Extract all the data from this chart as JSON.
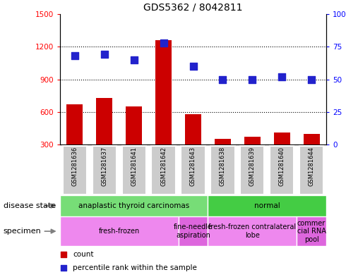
{
  "title": "GDS5362 / 8042811",
  "samples": [
    "GSM1281636",
    "GSM1281637",
    "GSM1281641",
    "GSM1281642",
    "GSM1281643",
    "GSM1281638",
    "GSM1281639",
    "GSM1281640",
    "GSM1281644"
  ],
  "counts": [
    670,
    730,
    650,
    1260,
    580,
    350,
    370,
    410,
    400
  ],
  "percentile_ranks": [
    68,
    69,
    65,
    78,
    60,
    50,
    50,
    52,
    50
  ],
  "ylim_left": [
    300,
    1500
  ],
  "ylim_right": [
    0,
    100
  ],
  "yticks_left": [
    300,
    600,
    900,
    1200,
    1500
  ],
  "yticks_right": [
    0,
    25,
    50,
    75,
    100
  ],
  "ytick_right_labels": [
    "0",
    "25",
    "50",
    "75",
    "100%"
  ],
  "bar_color": "#cc0000",
  "dot_color": "#2222cc",
  "dot_size": 55,
  "bar_width": 0.55,
  "disease_state_groups": [
    {
      "label": "anaplastic thyroid carcinomas",
      "start": 0,
      "end": 5,
      "color": "#77dd77"
    },
    {
      "label": "normal",
      "start": 5,
      "end": 9,
      "color": "#44cc44"
    }
  ],
  "specimen_groups": [
    {
      "label": "fresh-frozen",
      "start": 0,
      "end": 4,
      "color": "#ee88ee"
    },
    {
      "label": "fine-needle\naspiration",
      "start": 4,
      "end": 5,
      "color": "#dd66dd"
    },
    {
      "label": "fresh-frozen contralateral\nlobe",
      "start": 5,
      "end": 8,
      "color": "#ee88ee"
    },
    {
      "label": "commer\ncial RNA\npool",
      "start": 8,
      "end": 9,
      "color": "#dd66dd"
    }
  ],
  "legend_count_label": "count",
  "legend_percentile_label": "percentile rank within the sample",
  "disease_state_label": "disease state",
  "specimen_label": "specimen",
  "gray_box_color": "#cccccc",
  "grid_color": "#000000",
  "grid_linestyle": "dotted",
  "grid_linewidth": 0.8,
  "grid_yvals": [
    600,
    900,
    1200
  ],
  "title_fontsize": 10,
  "tick_fontsize": 7.5,
  "label_fontsize": 7.5,
  "row_label_fontsize": 8
}
